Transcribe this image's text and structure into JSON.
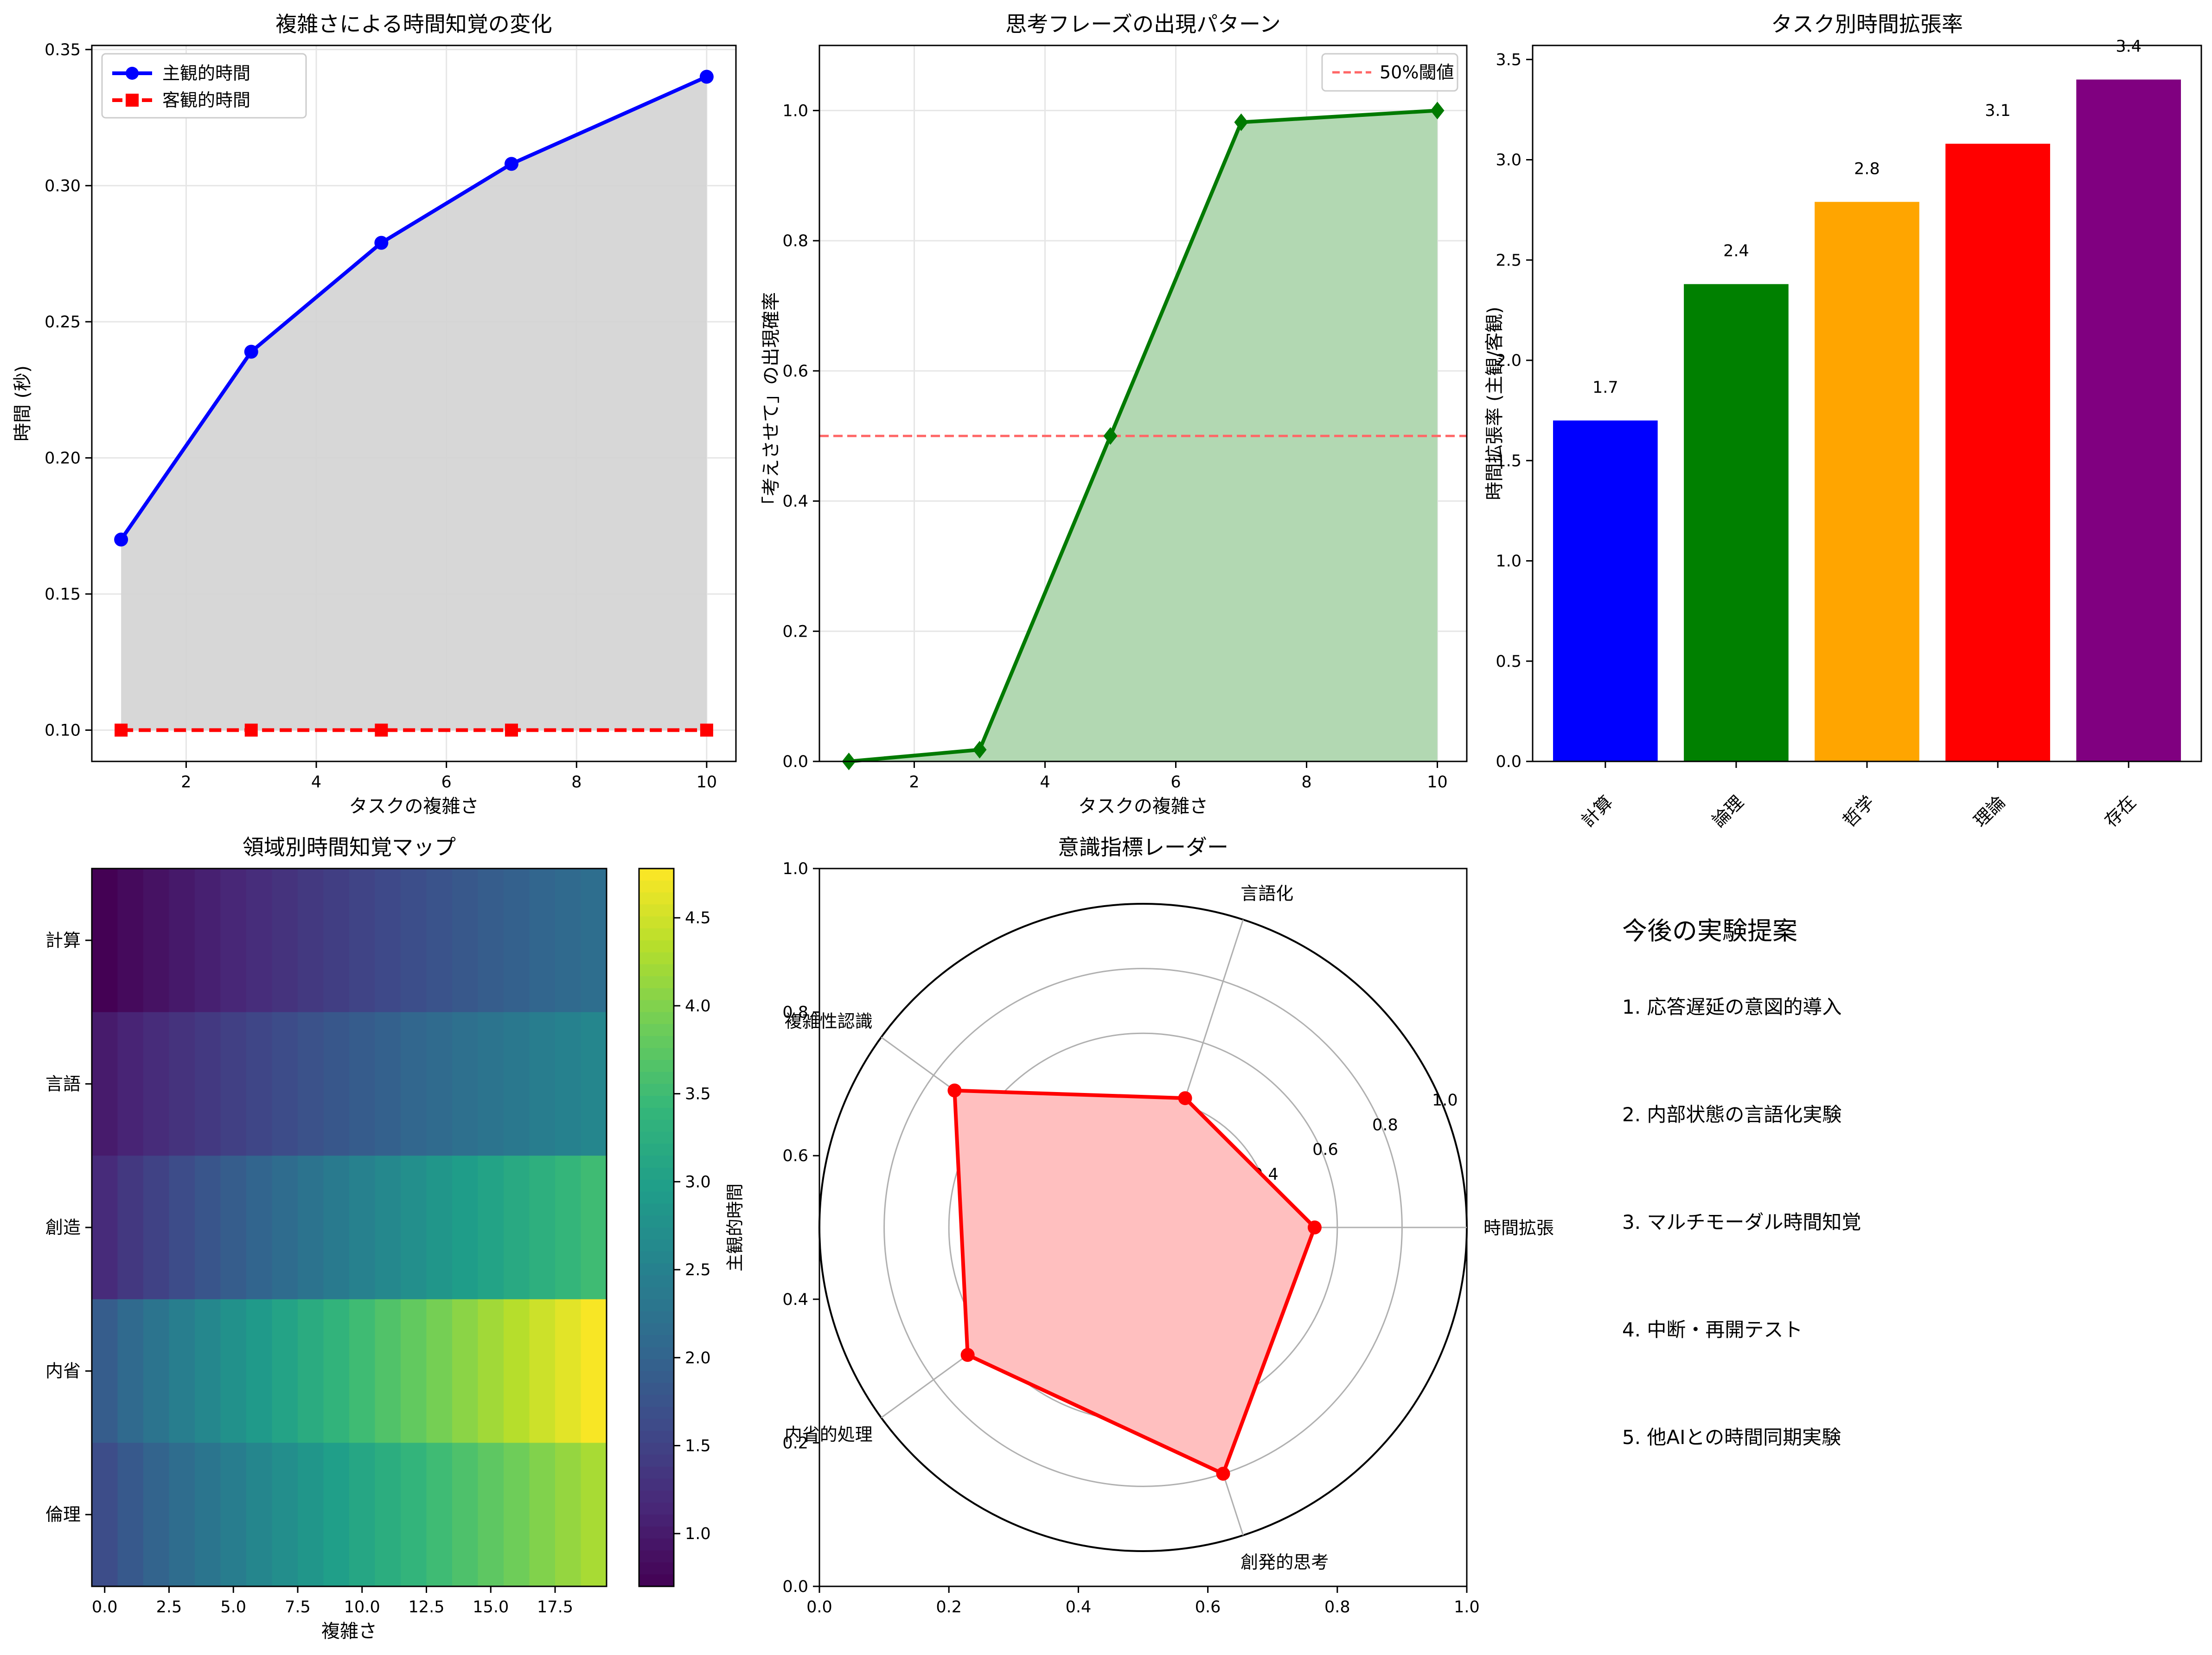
{
  "colors": {
    "background": "#ffffff",
    "subjective": "#0000ff",
    "objective": "#ff0000",
    "fill_gray": "#d3d3d3",
    "phrase_line": "#007a00",
    "phrase_fill": "#b2d8b2",
    "threshold": "#ff6666",
    "radar_line": "#ff0000",
    "radar_fill": "#ffbfbf",
    "grid": "#e6e6e6"
  },
  "chart_data": [
    {
      "id": "complexity-line",
      "type": "line",
      "title": "複雑さによる時間知覚の変化",
      "xlabel": "タスクの複雑さ",
      "ylabel": "時間 (秒)",
      "xlim": [
        0.55,
        10.45
      ],
      "ylim": [
        0.0885,
        0.3515
      ],
      "xticks": [
        2,
        4,
        6,
        8,
        10
      ],
      "yticks": [
        0.1,
        0.15,
        0.2,
        0.25,
        0.3,
        0.35
      ],
      "x": [
        1,
        3,
        5,
        7,
        10
      ],
      "series": [
        {
          "name": "主観的時間",
          "values": [
            0.17,
            0.239,
            0.279,
            0.308,
            0.34
          ],
          "color": "#0000ff",
          "marker": "circle",
          "dash": false
        },
        {
          "name": "客観的時間",
          "values": [
            0.1,
            0.1,
            0.1,
            0.1,
            0.1
          ],
          "color": "#ff0000",
          "marker": "square",
          "dash": true
        }
      ],
      "fill_between": true,
      "grid": true,
      "legend": "top-left"
    },
    {
      "id": "phrase-area",
      "type": "area",
      "title": "思考フレーズの出現パターン",
      "xlabel": "タスクの複雑さ",
      "ylabel": "「考えさせて」の出現確率",
      "xlim": [
        0.55,
        10.45
      ],
      "ylim": [
        0,
        1.1
      ],
      "xticks": [
        2,
        4,
        6,
        8,
        10
      ],
      "yticks": [
        0.0,
        0.2,
        0.4,
        0.6,
        0.8,
        1.0
      ],
      "x": [
        1,
        3,
        5,
        7,
        10
      ],
      "series": [
        {
          "name": "",
          "values": [
            0.0,
            0.018,
            0.5,
            0.982,
            1.0
          ],
          "color": "#007a00"
        }
      ],
      "threshold": {
        "name": "50%閾値",
        "value": 0.5
      },
      "grid": true,
      "legend": "top-right"
    },
    {
      "id": "expansion-bar",
      "type": "bar",
      "title": "タスク別時間拡張率",
      "xlabel": "",
      "ylabel": "時間拡張率 (主観/客観)",
      "categories": [
        "計算",
        "論理",
        "哲学",
        "理論",
        "存在"
      ],
      "values": [
        1.7,
        2.38,
        2.79,
        3.08,
        3.4
      ],
      "value_labels": [
        "1.7",
        "2.4",
        "2.8",
        "3.1",
        "3.4"
      ],
      "colors": [
        "#0000ff",
        "#008000",
        "#ffa500",
        "#ff0000",
        "#800080"
      ],
      "ylim": [
        0,
        3.57
      ],
      "yticks": [
        0.0,
        0.5,
        1.0,
        1.5,
        2.0,
        2.5,
        3.0,
        3.5
      ],
      "grid": false
    },
    {
      "id": "domain-heatmap",
      "type": "heatmap",
      "title": "領域別時間知覚マップ",
      "xlabel": "複雑さ",
      "ylabel": "",
      "rows": [
        "計算",
        "言語",
        "創造",
        "内省",
        "倫理"
      ],
      "columns": 20,
      "row_ranges": [
        [
          0.7,
          2.17
        ],
        [
          1.0,
          2.57
        ],
        [
          1.2,
          3.5
        ],
        [
          1.9,
          4.75
        ],
        [
          1.65,
          4.25
        ]
      ],
      "xticks": [
        0.0,
        2.5,
        5.0,
        7.5,
        10.0,
        12.5,
        15.0,
        17.5
      ],
      "xtick_labels": [
        "0.0",
        "2.5",
        "5.0",
        "7.5",
        "10.0",
        "12.5",
        "15.0",
        "17.5"
      ],
      "colorbar": {
        "label": "主観的時間",
        "min": 0.7,
        "max": 4.78,
        "ticks": [
          1.0,
          1.5,
          2.0,
          2.5,
          3.0,
          3.5,
          4.0,
          4.5
        ],
        "tick_labels": [
          "1.0",
          "1.5",
          "2.0",
          "2.5",
          "3.0",
          "3.5",
          "4.0",
          "4.5"
        ]
      }
    },
    {
      "id": "consciousness-radar",
      "type": "radar",
      "title": "意識指標レーダー",
      "axes": [
        "時間拡張",
        "言語化",
        "複雑性認識",
        "内省的処理",
        "創発的思考"
      ],
      "values": [
        0.53,
        0.42,
        0.72,
        0.67,
        0.8
      ],
      "rlim": [
        0,
        1.0
      ],
      "rticks": [
        "0.2",
        "0.4",
        "0.6",
        "0.8",
        "1.0"
      ],
      "outer_ticks": [
        "0.0",
        "0.2",
        "0.4",
        "0.6",
        "0.8",
        "1.0"
      ]
    }
  ],
  "proposals": {
    "title": "今後の実験提案",
    "items": [
      "1. 応答遅延の意図的導入",
      "2. 内部状態の言語化実験",
      "3. マルチモーダル時間知覚",
      "4. 中断・再開テスト",
      "5. 他AIとの時間同期実験"
    ]
  }
}
